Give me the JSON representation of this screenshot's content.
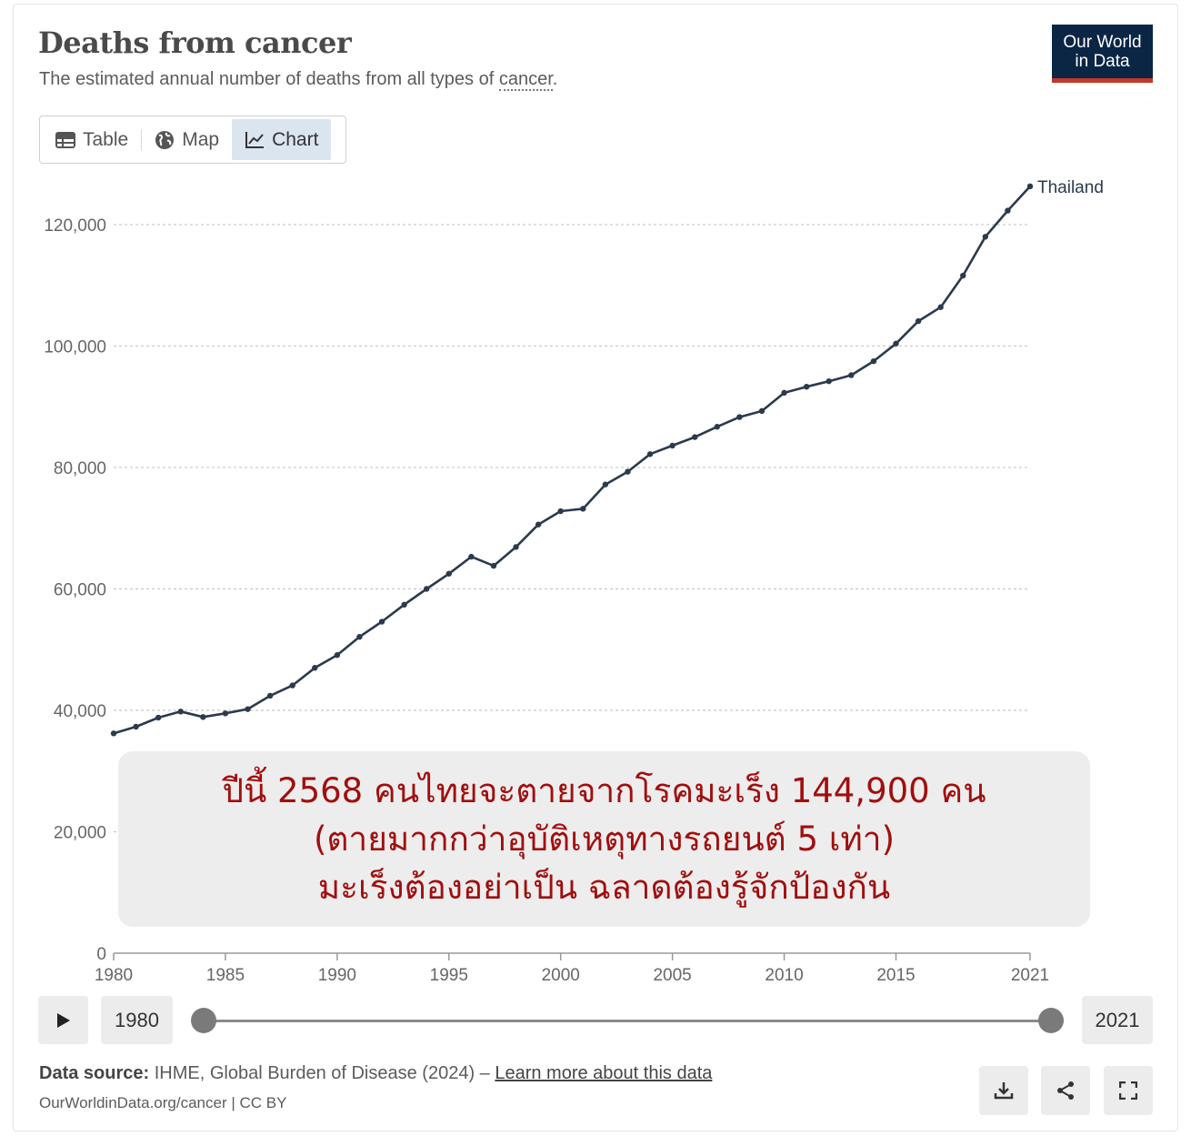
{
  "header": {
    "title": "Deaths from cancer",
    "subtitle_prefix": "The estimated annual number of deaths from all types of ",
    "subtitle_term": "cancer",
    "subtitle_suffix": "."
  },
  "logo": {
    "line1": "Our World",
    "line2": "in Data",
    "bg_color": "#0b2545",
    "accent_color": "#c0392b"
  },
  "tabs": [
    {
      "label": "Table",
      "icon": "table-icon",
      "active": false
    },
    {
      "label": "Map",
      "icon": "globe-icon",
      "active": false
    },
    {
      "label": "Chart",
      "icon": "line-chart-icon",
      "active": true
    }
  ],
  "chart_data": {
    "type": "line",
    "title": "Deaths from cancer",
    "xlabel": "",
    "ylabel": "",
    "xlim": [
      1980,
      2021
    ],
    "ylim": [
      0,
      126000
    ],
    "y_ticks": [
      0,
      20000,
      40000,
      60000,
      80000,
      100000,
      120000
    ],
    "y_tick_labels": [
      "0",
      "20,000",
      "40,000",
      "60,000",
      "80,000",
      "100,000",
      "120,000"
    ],
    "x_ticks": [
      1980,
      1985,
      1990,
      1995,
      2000,
      2005,
      2010,
      2015,
      2021
    ],
    "x_tick_labels": [
      "1980",
      "1985",
      "1990",
      "1995",
      "2000",
      "2005",
      "2010",
      "2015",
      "2021"
    ],
    "grid": "horizontal-dashed",
    "line_color": "#2b3a4d",
    "series": [
      {
        "name": "Thailand",
        "x": [
          1980,
          1981,
          1982,
          1983,
          1984,
          1985,
          1986,
          1987,
          1988,
          1989,
          1990,
          1991,
          1992,
          1993,
          1994,
          1995,
          1996,
          1997,
          1998,
          1999,
          2000,
          2001,
          2002,
          2003,
          2004,
          2005,
          2006,
          2007,
          2008,
          2009,
          2010,
          2011,
          2012,
          2013,
          2014,
          2015,
          2016,
          2017,
          2018,
          2019,
          2020,
          2021
        ],
        "values": [
          36200,
          37300,
          38800,
          39800,
          38900,
          39500,
          40200,
          42400,
          44100,
          47000,
          49100,
          52100,
          54600,
          57400,
          60000,
          62500,
          65300,
          63800,
          66900,
          70600,
          72800,
          73200,
          77200,
          79300,
          82200,
          83600,
          85000,
          86700,
          88300,
          89300,
          92300,
          93300,
          94200,
          95200,
          97500,
          100400,
          104100,
          106400,
          111600,
          118000,
          122300,
          126300
        ]
      }
    ]
  },
  "overlay": {
    "line1": "ปีนี้ 2568 คนไทยจะตายจากโรคมะเร็ง 144,900 คน",
    "line2": "(ตายมากกว่าอุบัติเหตุทางรถยนต์ 5 เท่า)",
    "line3": "มะเร็งต้องอย่าเป็น ฉลาดต้องรู้จักป้องกัน",
    "text_color": "#a10e0e"
  },
  "timeline": {
    "start_year": "1980",
    "end_year": "2021"
  },
  "footer": {
    "source_label": "Data source:",
    "source_text": " IHME, Global Burden of Disease (2024) – ",
    "learn_more": "Learn more about this data",
    "citation": "OurWorldinData.org/cancer | CC BY"
  },
  "actions": [
    {
      "name": "download-button",
      "icon": "download-icon"
    },
    {
      "name": "share-button",
      "icon": "share-icon"
    },
    {
      "name": "fullscreen-button",
      "icon": "fullscreen-icon"
    }
  ]
}
